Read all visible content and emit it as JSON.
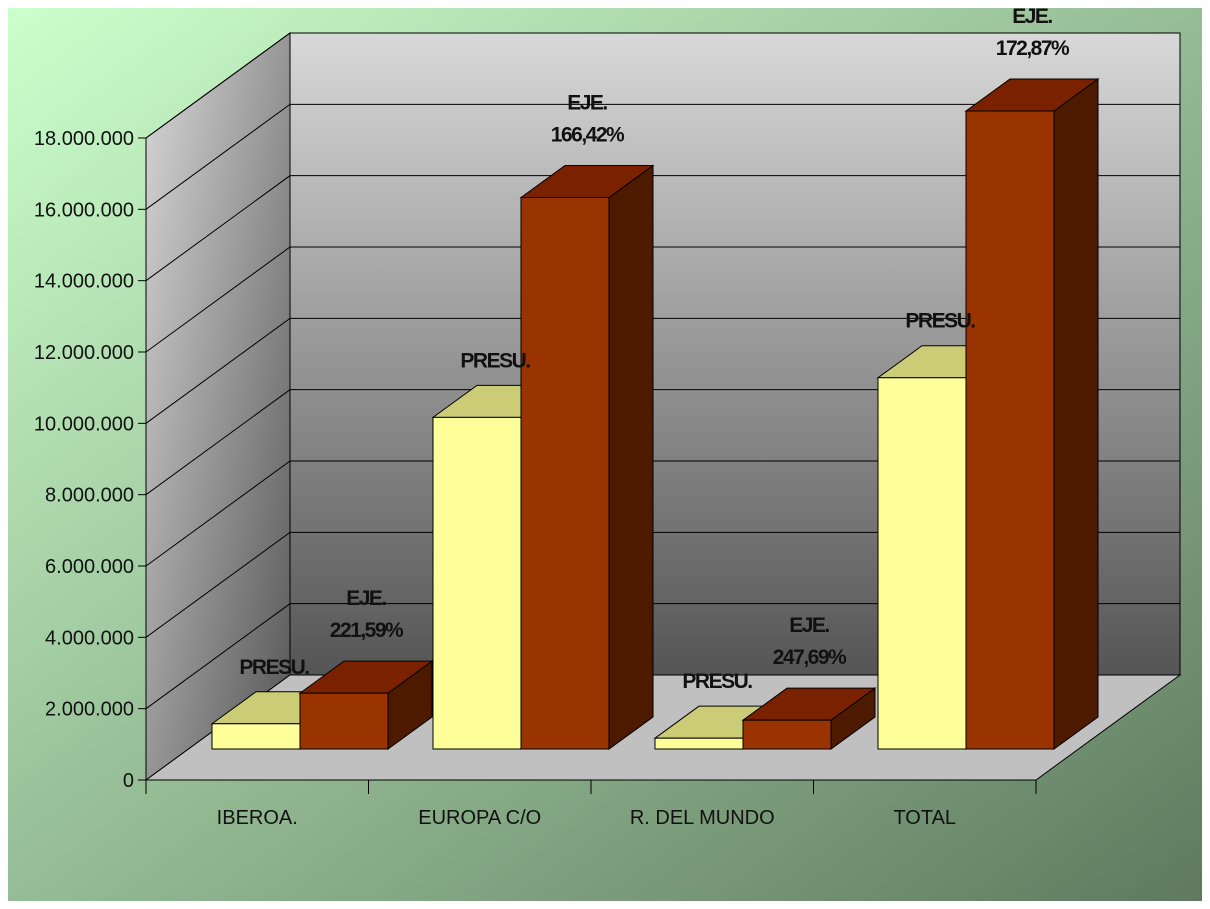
{
  "chart_data": {
    "type": "bar",
    "title": "",
    "xlabel": "",
    "ylabel": "",
    "ylim": [
      0,
      18000000
    ],
    "yticks": [
      {
        "value": 0,
        "label": "0"
      },
      {
        "value": 2000000,
        "label": "2.000.000"
      },
      {
        "value": 4000000,
        "label": "4.000.000"
      },
      {
        "value": 6000000,
        "label": "6.000.000"
      },
      {
        "value": 8000000,
        "label": "8.000.000"
      },
      {
        "value": 10000000,
        "label": "10.000.000"
      },
      {
        "value": 12000000,
        "label": "12.000.000"
      },
      {
        "value": 14000000,
        "label": "14.000.000"
      },
      {
        "value": 16000000,
        "label": "16.000.000"
      },
      {
        "value": 18000000,
        "label": "18.000.000"
      }
    ],
    "categories": [
      "IBEROA.",
      "EUROPA C/O",
      "R. DEL MUNDO",
      "TOTAL"
    ],
    "series": [
      {
        "values": [
          700000,
          9200000,
          300000,
          10300000
        ],
        "colors": {
          "front": "#ffff99",
          "top": "#cccc77",
          "side": "#999966"
        },
        "labels": [
          "PRESU.",
          "PRESU.",
          "PRESU.",
          "PRESU."
        ]
      },
      {
        "values": [
          1550000,
          15300000,
          800000,
          17700000
        ],
        "colors": {
          "front": "#993300",
          "top": "#7a2200",
          "side": "#4d1a00"
        },
        "labels": [
          {
            "line1": "EJE.",
            "line2": "221,59%"
          },
          {
            "line1": "EJE.",
            "line2": "166,42%"
          },
          {
            "line1": "EJE.",
            "line2": "247,69%"
          },
          {
            "line1": "EJE.",
            "line2": "172,87%"
          }
        ]
      }
    ],
    "grid": true,
    "legend": "none",
    "style": "3d-clustered-column",
    "background_gradient": [
      "#ccffcc",
      "#5f7a5f"
    ],
    "wall_gradient": [
      "#d8d8d8",
      "#555555"
    ],
    "floor_color": "#c0c0c0"
  }
}
